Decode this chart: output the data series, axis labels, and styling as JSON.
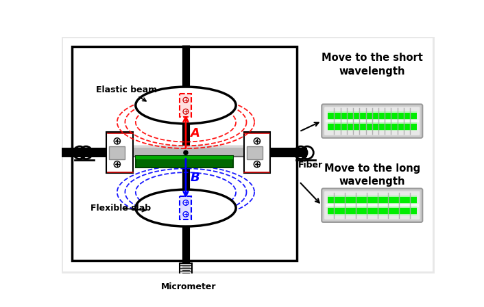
{
  "short_wl_text": "Move to the short\nwavelength",
  "long_wl_text": "Move to the long\nwavelength",
  "fiber_label": "Fiber",
  "elastic_beam_label": "Elastic beam",
  "flexible_slab_label": "Flexible slab",
  "micrometer_label": "Micrometer",
  "label_A": "A",
  "label_B": "B",
  "fig_w": 7.06,
  "fig_h": 4.49,
  "dpi": 100
}
